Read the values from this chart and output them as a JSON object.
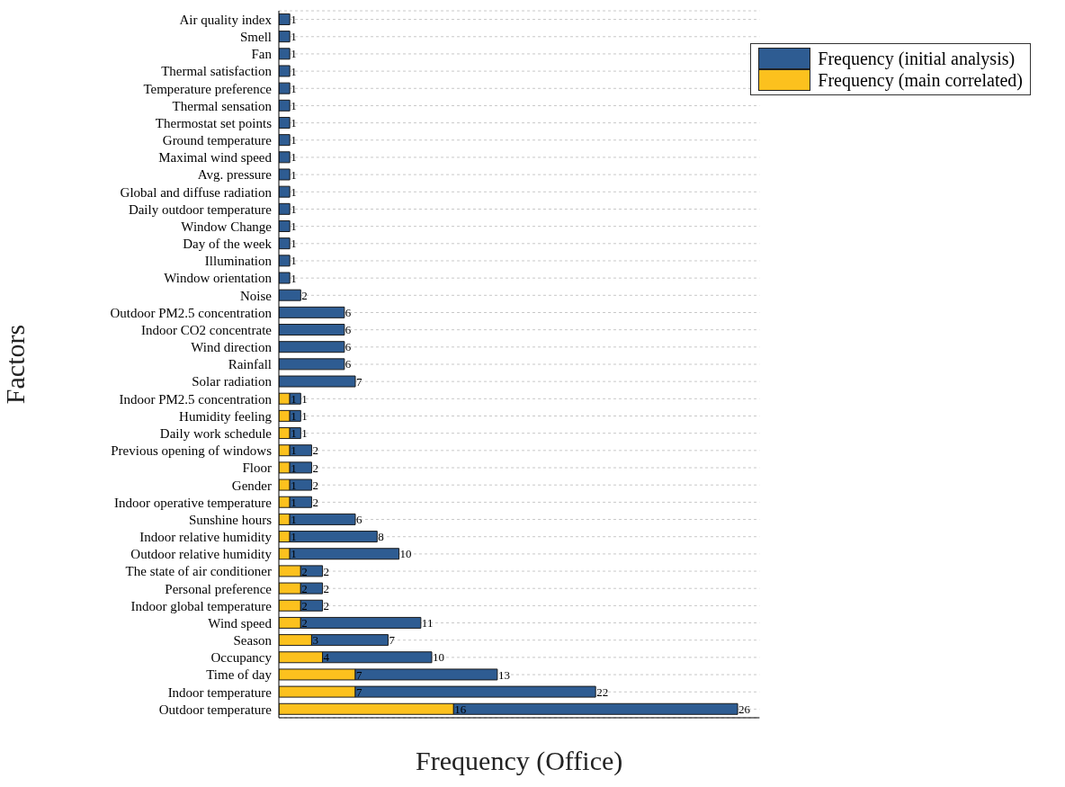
{
  "chart_data": {
    "type": "bar",
    "orientation": "horizontal",
    "stacked": true,
    "xlabel": "Frequency (Office)",
    "ylabel": "Factors",
    "categories": [
      "Air quality index",
      "Smell",
      "Fan",
      "Thermal satisfaction",
      "Temperature preference",
      "Thermal sensation",
      "Thermostat set points",
      "Ground temperature",
      "Maximal wind speed",
      "Avg. pressure",
      "Global and diffuse radiation",
      "Daily outdoor temperature",
      "Window Change",
      "Day of the week",
      "Illumination",
      "Window orientation",
      "Noise",
      "Outdoor PM2.5 concentration",
      "Indoor CO2 concentrate",
      "Wind direction",
      "Rainfall",
      "Solar radiation",
      "Indoor PM2.5 concentration",
      "Humidity feeling",
      "Daily work schedule",
      "Previous opening of windows",
      "Floor",
      "Gender",
      "Indoor operative temperature",
      "Sunshine hours",
      "Indoor relative humidity",
      "Outdoor relative humidity",
      "The state of air conditioner",
      "Personal preference",
      "Indoor global temperature",
      "Wind speed",
      "Season",
      "Occupancy",
      "Time of day",
      "Indoor temperature",
      "Outdoor temperature"
    ],
    "series": [
      {
        "name": "Frequency (main correlated)",
        "color": "#fcc11e",
        "values": [
          null,
          null,
          null,
          null,
          null,
          null,
          null,
          null,
          null,
          null,
          null,
          null,
          null,
          null,
          null,
          null,
          null,
          null,
          null,
          null,
          null,
          null,
          1,
          1,
          1,
          1,
          1,
          1,
          1,
          1,
          1,
          1,
          2,
          2,
          2,
          2,
          3,
          4,
          7,
          7,
          16
        ]
      },
      {
        "name": "Frequency (initial analysis)",
        "color": "#2e5c92",
        "values": [
          1,
          1,
          1,
          1,
          1,
          1,
          1,
          1,
          1,
          1,
          1,
          1,
          1,
          1,
          1,
          1,
          2,
          6,
          6,
          6,
          6,
          7,
          1,
          1,
          1,
          2,
          2,
          2,
          2,
          6,
          8,
          10,
          2,
          2,
          2,
          11,
          7,
          10,
          13,
          22,
          26
        ]
      }
    ],
    "xlim": [
      0,
      44
    ],
    "tick_labels": "y",
    "grid": "y",
    "legend": "top right",
    "data_labels": true
  }
}
